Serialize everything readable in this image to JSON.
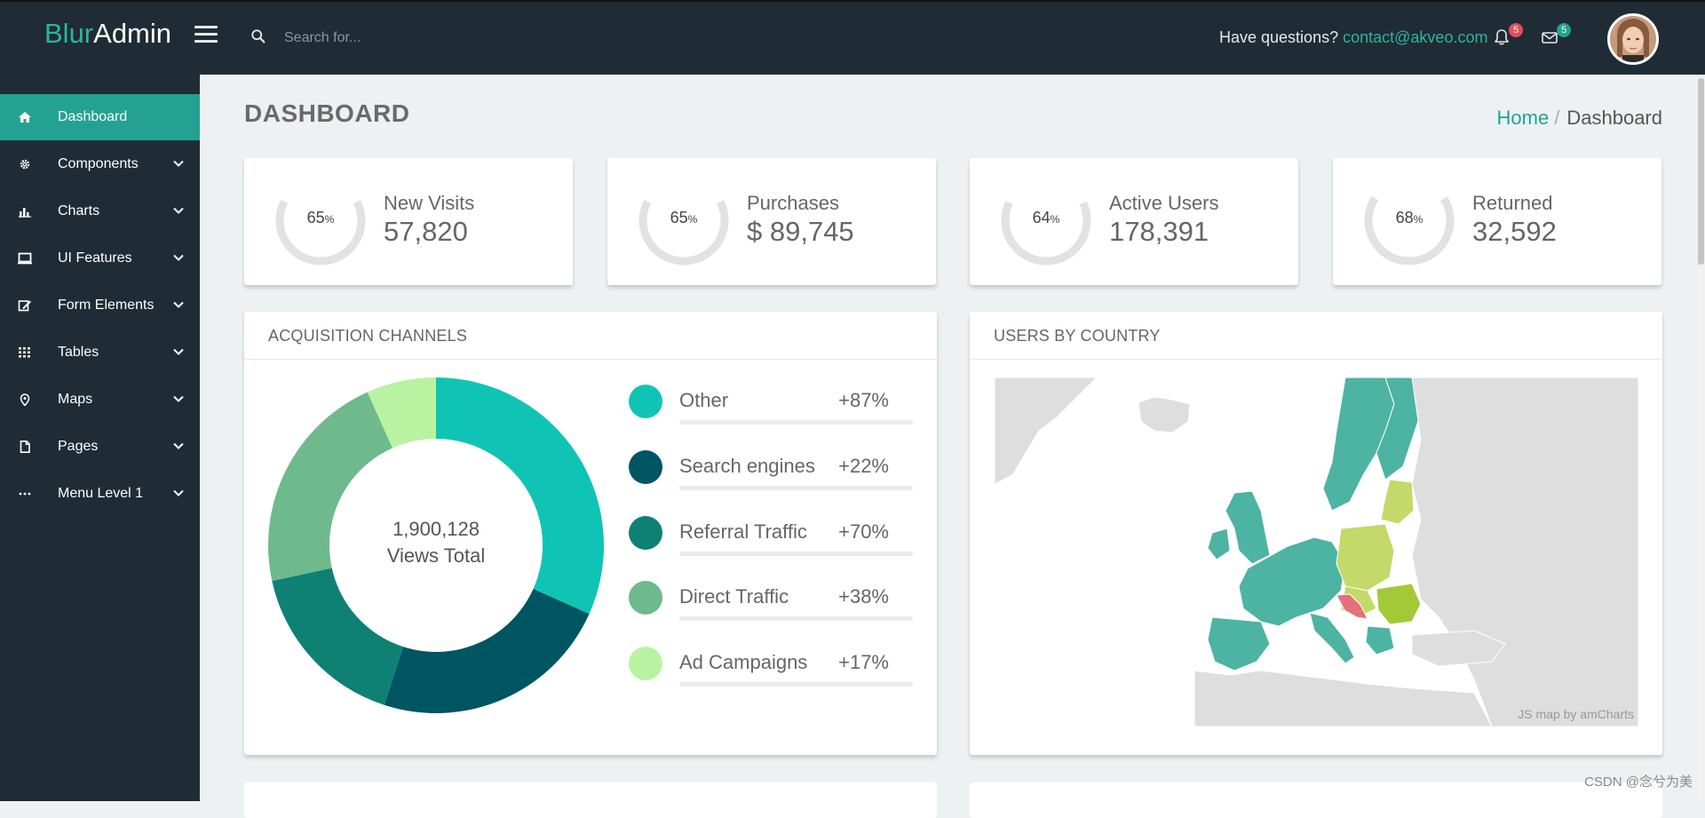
{
  "app": {
    "logo_part1": "Blur",
    "logo_part2": "Admin"
  },
  "header": {
    "search_placeholder": "Search for...",
    "questions_text": "Have questions?",
    "contact_email": "contact@akveo.com",
    "notifications_count": "5",
    "messages_count": "5",
    "icons": [
      "menu-icon",
      "search-icon",
      "bell-icon",
      "envelope-icon",
      "avatar"
    ]
  },
  "sidebar": {
    "items": [
      {
        "label": "Dashboard",
        "icon": "home-icon",
        "active": true
      },
      {
        "label": "Components",
        "icon": "gear-icon"
      },
      {
        "label": "Charts",
        "icon": "bar-chart-icon"
      },
      {
        "label": "UI Features",
        "icon": "monitor-icon"
      },
      {
        "label": "Form Elements",
        "icon": "edit-icon"
      },
      {
        "label": "Tables",
        "icon": "grid-icon"
      },
      {
        "label": "Maps",
        "icon": "map-pin-icon"
      },
      {
        "label": "Pages",
        "icon": "file-icon"
      },
      {
        "label": "Menu Level 1",
        "icon": "ellipsis-icon"
      }
    ]
  },
  "page": {
    "title": "DASHBOARD",
    "breadcrumb": {
      "home": "Home",
      "current": "Dashboard"
    }
  },
  "stats": [
    {
      "percent": 65,
      "percent_text": "65",
      "name": "New Visits",
      "value": "57,820"
    },
    {
      "percent": 65,
      "percent_text": "65",
      "name": "Purchases",
      "value": "$ 89,745"
    },
    {
      "percent": 64,
      "percent_text": "64",
      "name": "Active Users",
      "value": "178,391"
    },
    {
      "percent": 68,
      "percent_text": "68",
      "name": "Returned",
      "value": "32,592"
    }
  ],
  "acquisition": {
    "title": "ACQUISITION CHANNELS",
    "total_value": "1,900,128",
    "total_label": "Views Total",
    "channels": [
      {
        "name": "Other",
        "value": "+87%",
        "color": "#10c4b5",
        "share": 0.317
      },
      {
        "name": "Search engines",
        "value": "+22%",
        "color": "#005562",
        "share": 0.233
      },
      {
        "name": "Referral Traffic",
        "value": "+70%",
        "color": "#0e8174",
        "share": 0.166
      },
      {
        "name": "Direct Traffic",
        "value": "+38%",
        "color": "#6eba8c",
        "share": 0.217
      },
      {
        "name": "Ad Campaigns",
        "value": "+17%",
        "color": "#b9f2a1",
        "share": 0.067
      }
    ]
  },
  "users_by_country": {
    "title": "USERS BY COUNTRY",
    "credit": "JS map by amCharts",
    "colors": {
      "primary": "#4db3a2",
      "secondary": "#c3d96a",
      "highlight": "#a3c939",
      "alert": "#e5707a",
      "land": "#dedede"
    }
  },
  "watermark": "CSDN @念兮为美",
  "colors": {
    "accent": "#23a293",
    "dark": "#1f2c36",
    "background": "#eef1f3"
  }
}
